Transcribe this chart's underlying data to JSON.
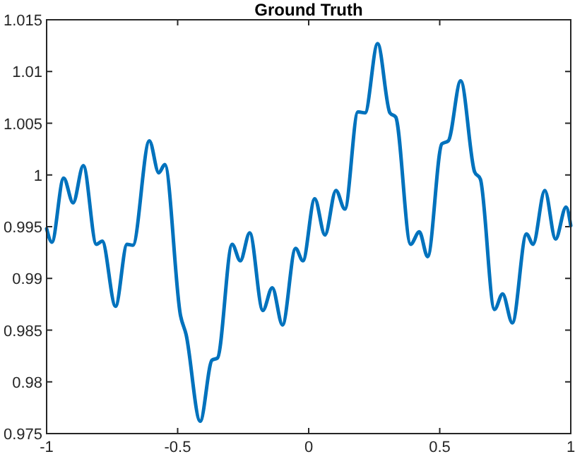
{
  "chart_data": {
    "type": "line",
    "title": "Ground Truth",
    "xlim": [
      -1,
      1
    ],
    "xticks": [
      -1,
      -0.5,
      0,
      0.5,
      1
    ],
    "ylim": [
      0.975,
      1.015
    ],
    "yticks": [
      0.975,
      0.98,
      0.985,
      0.99,
      0.995,
      1,
      1.005,
      1.01,
      1.015
    ],
    "marker": "none",
    "line_style": "solid",
    "series": [
      {
        "color": "#0072bd",
        "x": [
          -1,
          -0.98,
          -0.935,
          -0.899,
          -0.86,
          -0.81,
          -0.788,
          -0.737,
          -0.693,
          -0.671,
          -0.608,
          -0.572,
          -0.549,
          -0.489,
          -0.468,
          -0.414,
          -0.369,
          -0.348,
          -0.292,
          -0.261,
          -0.225,
          -0.175,
          -0.139,
          -0.1,
          -0.05,
          -0.022,
          0.023,
          0.062,
          0.104,
          0.138,
          0.188,
          0.215,
          0.263,
          0.31,
          0.332,
          0.389,
          0.422,
          0.454,
          0.508,
          0.533,
          0.58,
          0.633,
          0.655,
          0.709,
          0.74,
          0.777,
          0.831,
          0.856,
          0.901,
          0.942,
          0.982,
          1
        ],
        "values": [
          0.9948,
          0.9935,
          0.9997,
          0.9973,
          1.0009,
          0.9933,
          0.9936,
          0.9873,
          0.9933,
          0.9932,
          1.0033,
          1.0002,
          1.001,
          0.9864,
          0.9846,
          0.9762,
          0.9821,
          0.9823,
          0.9933,
          0.9917,
          0.9944,
          0.9869,
          0.9891,
          0.9855,
          0.9929,
          0.9917,
          0.9977,
          0.9942,
          0.9985,
          0.9967,
          1.0061,
          1.006,
          1.0127,
          1.006,
          1.0056,
          0.9933,
          0.9945,
          0.9921,
          1.003,
          1.0033,
          1.0091,
          1.0003,
          0.9996,
          0.987,
          0.9885,
          0.9857,
          0.9943,
          0.9933,
          0.9985,
          0.9938,
          0.9969,
          0.9951
        ]
      }
    ]
  }
}
